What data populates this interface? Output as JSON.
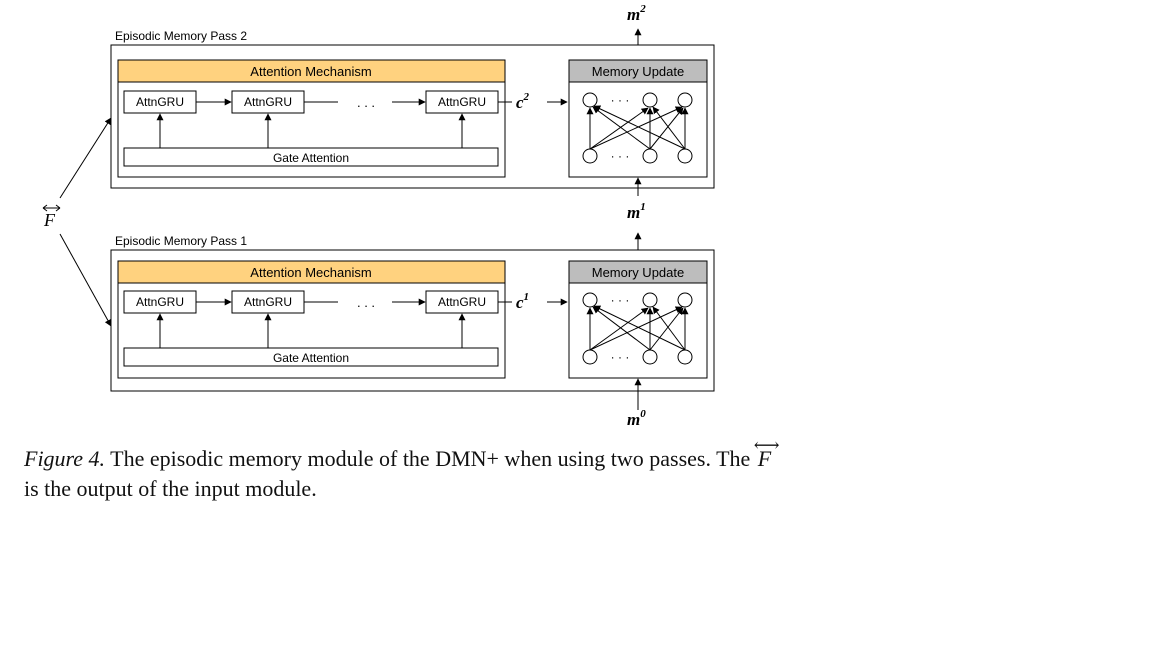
{
  "input_symbol": "F",
  "passes": [
    {
      "label": "Episodic Memory Pass 2",
      "attention_title": "Attention Mechanism",
      "gru_labels": [
        "AttnGRU",
        "AttnGRU",
        "AttnGRU"
      ],
      "ellipsis": ". . .",
      "gate_label": "Gate Attention",
      "context_base": "c",
      "context_sup": "2",
      "memory_update_title": "Memory Update",
      "node_ellipsis": "· · ·"
    },
    {
      "label": "Episodic Memory Pass 1",
      "attention_title": "Attention Mechanism",
      "gru_labels": [
        "AttnGRU",
        "AttnGRU",
        "AttnGRU"
      ],
      "ellipsis": ". . .",
      "gate_label": "Gate Attention",
      "context_base": "c",
      "context_sup": "1",
      "memory_update_title": "Memory Update",
      "node_ellipsis": "· · ·"
    }
  ],
  "memory_states": [
    {
      "base": "m",
      "sup": "2"
    },
    {
      "base": "m",
      "sup": "1"
    },
    {
      "base": "m",
      "sup": "0"
    }
  ],
  "caption": {
    "figure_label": "Figure 4.",
    "text_part1": " The episodic memory module of the DMN+ when using two passes. The ",
    "symbol": "F",
    "text_part2": " is the output of the input module."
  },
  "colors": {
    "attention_header": "#FFD27F",
    "memory_header": "#BDBDBD",
    "stroke": "#000000"
  }
}
